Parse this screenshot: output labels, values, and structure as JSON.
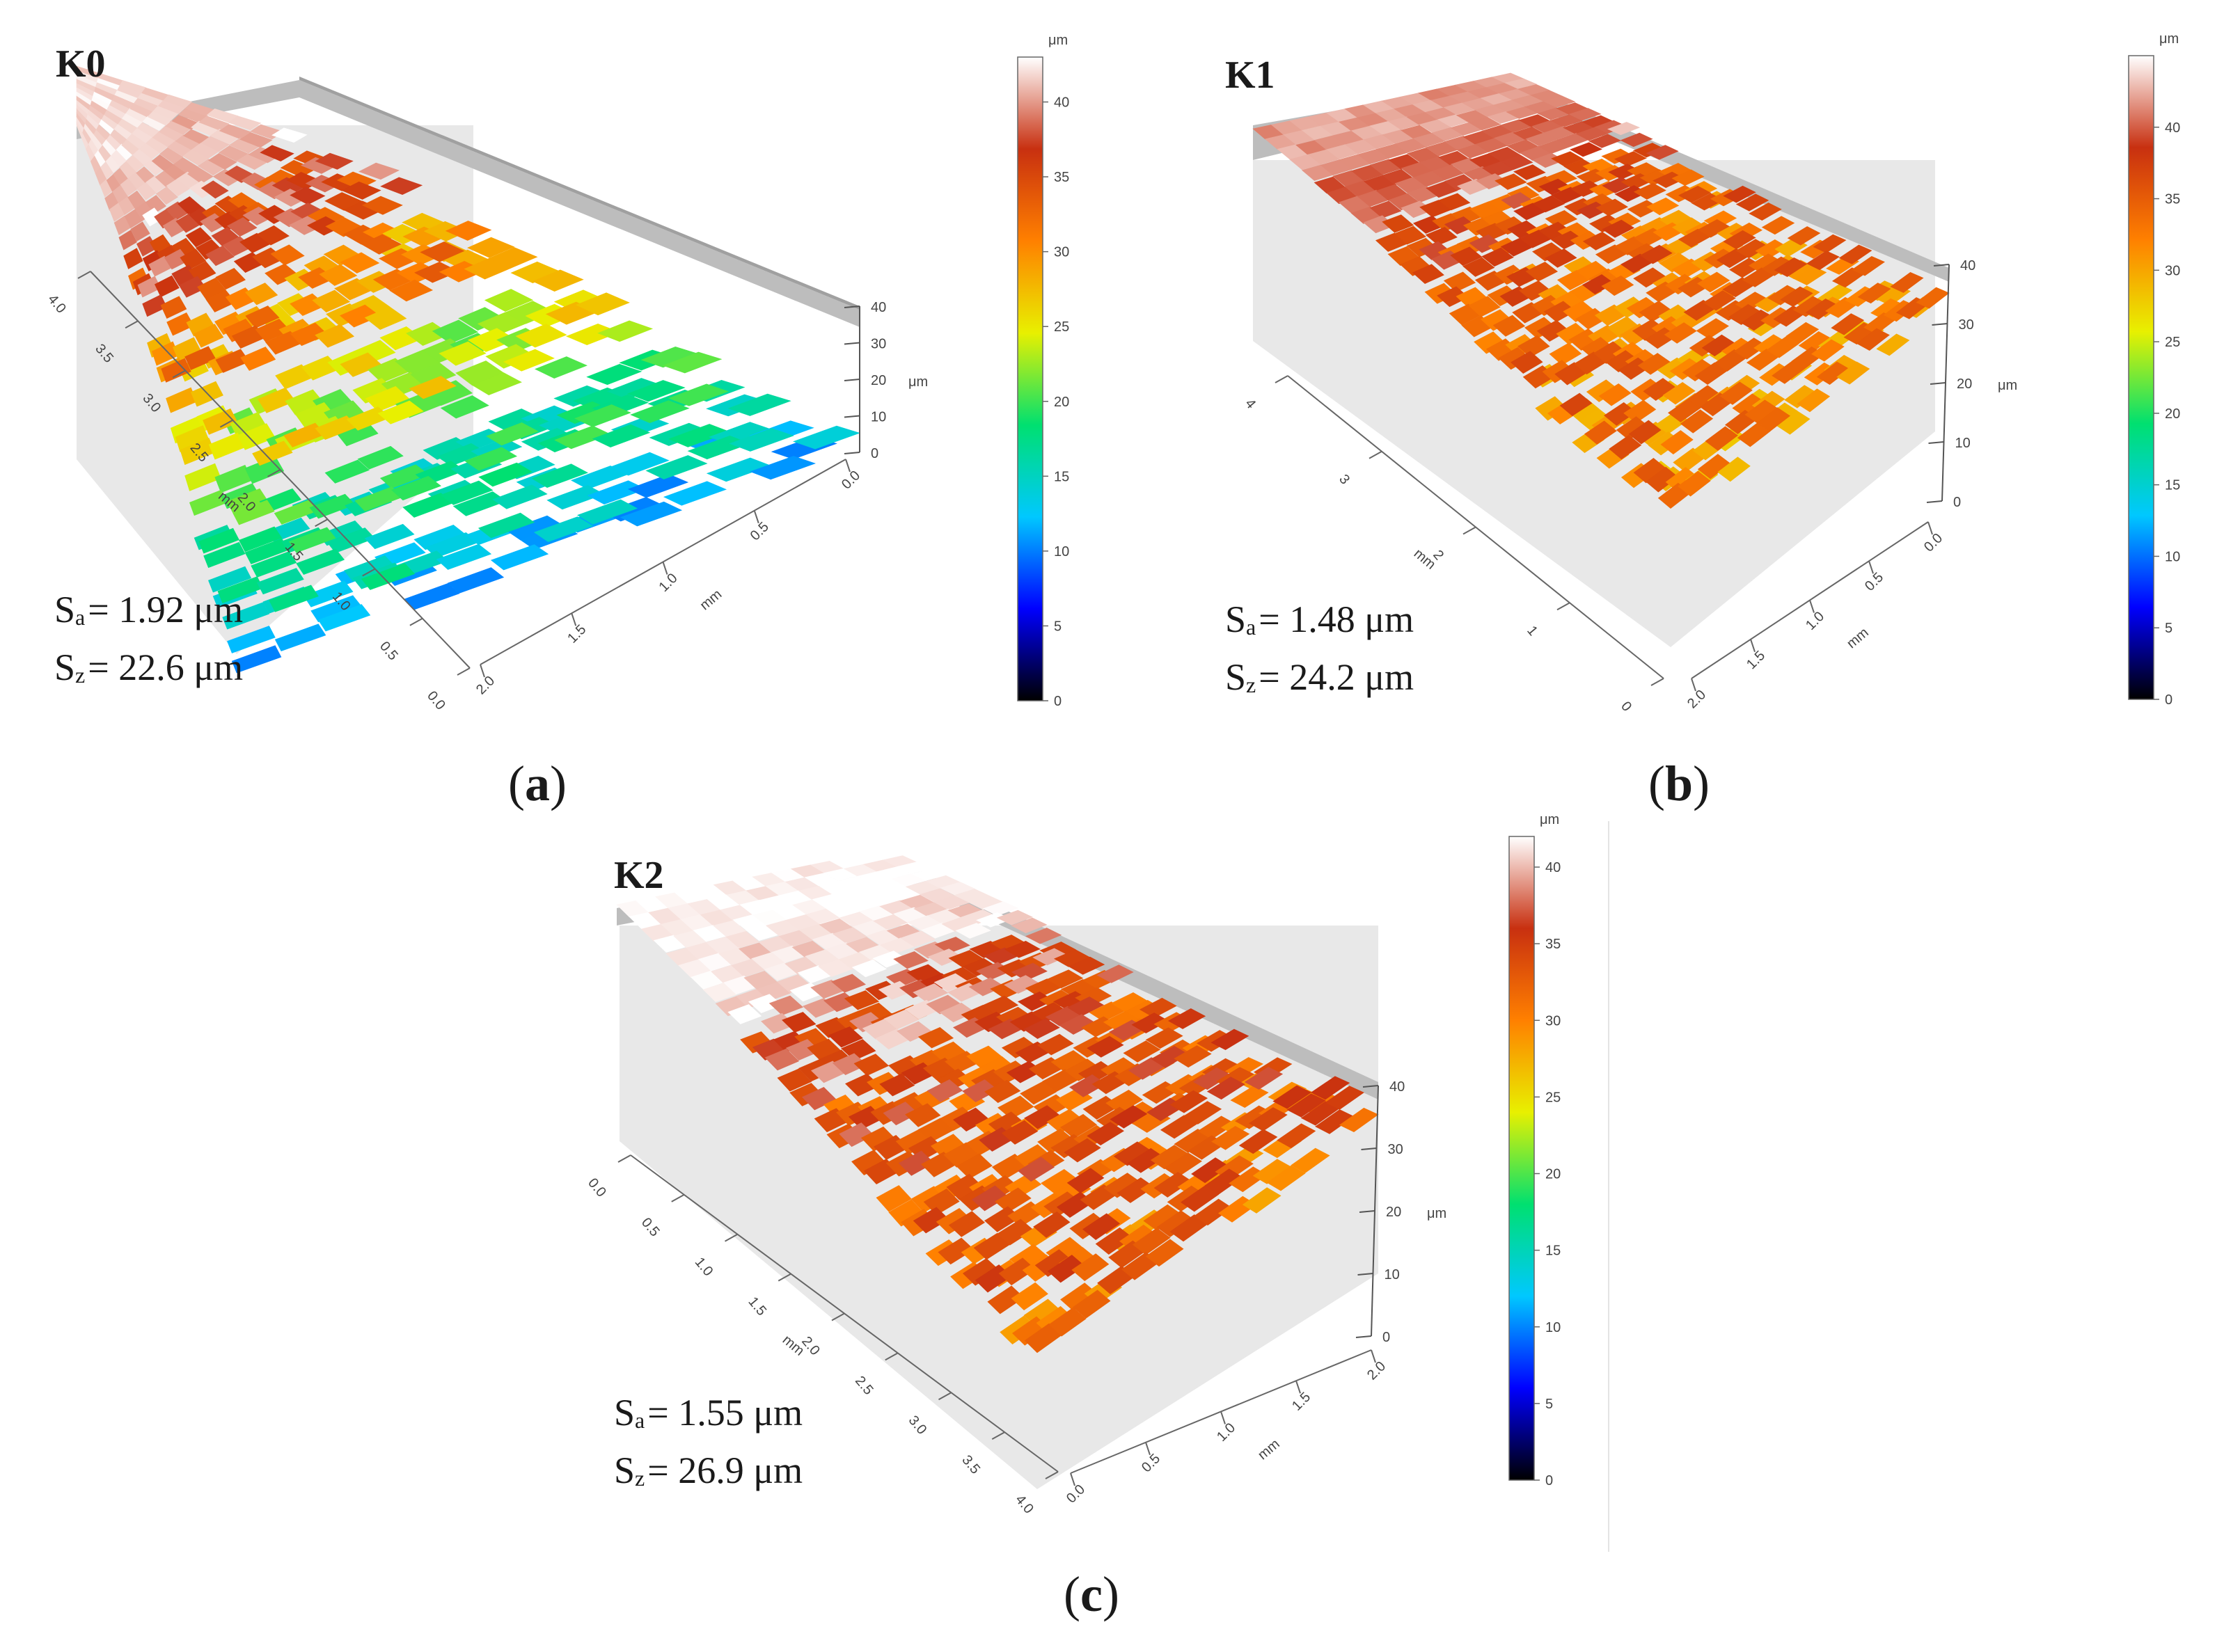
{
  "colors": {
    "background": "#ffffff",
    "colorbar_stops": [
      "#000000",
      "#0000ff",
      "#00c8ff",
      "#00e070",
      "#e8f000",
      "#ff8000",
      "#c83010",
      "#ffffff"
    ],
    "base_wall": "#e6e6e6",
    "back_wall": "#bdbdbd"
  },
  "panels": [
    {
      "id": "a",
      "sample": "K0",
      "caption": "a",
      "sa_symbol": "S",
      "sa_sub": "a",
      "sa_value": "= 1.92 μm",
      "sz_symbol": "S",
      "sz_sub": "z",
      "sz_value": "= 22.6 μm",
      "colorbar_unit": "μm",
      "colorbar_ticks": [
        "0",
        "5",
        "10",
        "15",
        "20",
        "25",
        "30",
        "35",
        "40"
      ],
      "colorbar_max": 43,
      "z_unit": "μm",
      "z_ticks": [
        "0",
        "10",
        "20",
        "30",
        "40"
      ],
      "long_axis_unit": "mm",
      "long_axis_ticks": [
        "0.0",
        "0.5",
        "1.0",
        "1.5",
        "2.0",
        "2.5",
        "3.0",
        "3.5",
        "4.0"
      ],
      "short_axis_unit": "mm",
      "short_axis_ticks": [
        "0.0",
        "0.5",
        "1.0",
        "1.5",
        "2.0"
      ],
      "surface_levels": [
        42,
        41,
        36,
        30,
        24,
        18,
        14
      ]
    },
    {
      "id": "b",
      "sample": "K1",
      "caption": "b",
      "sa_symbol": "S",
      "sa_sub": "a",
      "sa_value": "= 1.48 μm",
      "sz_symbol": "S",
      "sz_sub": "z",
      "sz_value": "= 24.2 μm",
      "colorbar_unit": "μm",
      "colorbar_ticks": [
        "0",
        "5",
        "10",
        "15",
        "20",
        "25",
        "30",
        "35",
        "40"
      ],
      "colorbar_max": 45,
      "z_unit": "μm",
      "z_ticks": [
        "0",
        "10",
        "20",
        "30",
        "40"
      ],
      "long_axis_unit": "mm",
      "long_axis_ticks": [
        "0",
        "1",
        "2",
        "3",
        "4"
      ],
      "short_axis_unit": "mm",
      "short_axis_ticks": [
        "0.0",
        "0.5",
        "1.0",
        "1.5",
        "2.0"
      ],
      "surface_levels": [
        42,
        40,
        36,
        34,
        33,
        33,
        32
      ]
    },
    {
      "id": "c",
      "sample": "K2",
      "caption": "c",
      "sa_symbol": "S",
      "sa_sub": "a",
      "sa_value": "= 1.55 μm",
      "sz_symbol": "S",
      "sz_sub": "z",
      "sz_value": "= 26.9 μm",
      "colorbar_unit": "μm",
      "colorbar_ticks": [
        "0",
        "5",
        "10",
        "15",
        "20",
        "25",
        "30",
        "35",
        "40"
      ],
      "colorbar_max": 42,
      "z_unit": "μm",
      "z_ticks": [
        "0",
        "10",
        "20",
        "30",
        "40"
      ],
      "long_axis_unit": "mm",
      "long_axis_ticks": [
        "0.0",
        "0.5",
        "1.0",
        "1.5",
        "2.0",
        "2.5",
        "3.0",
        "3.5",
        "4.0"
      ],
      "short_axis_unit": "mm",
      "short_axis_ticks": [
        "0.0",
        "0.5",
        "1.0",
        "1.5",
        "2.0"
      ],
      "surface_levels": [
        42,
        41,
        37,
        34,
        33,
        33,
        32
      ]
    }
  ]
}
